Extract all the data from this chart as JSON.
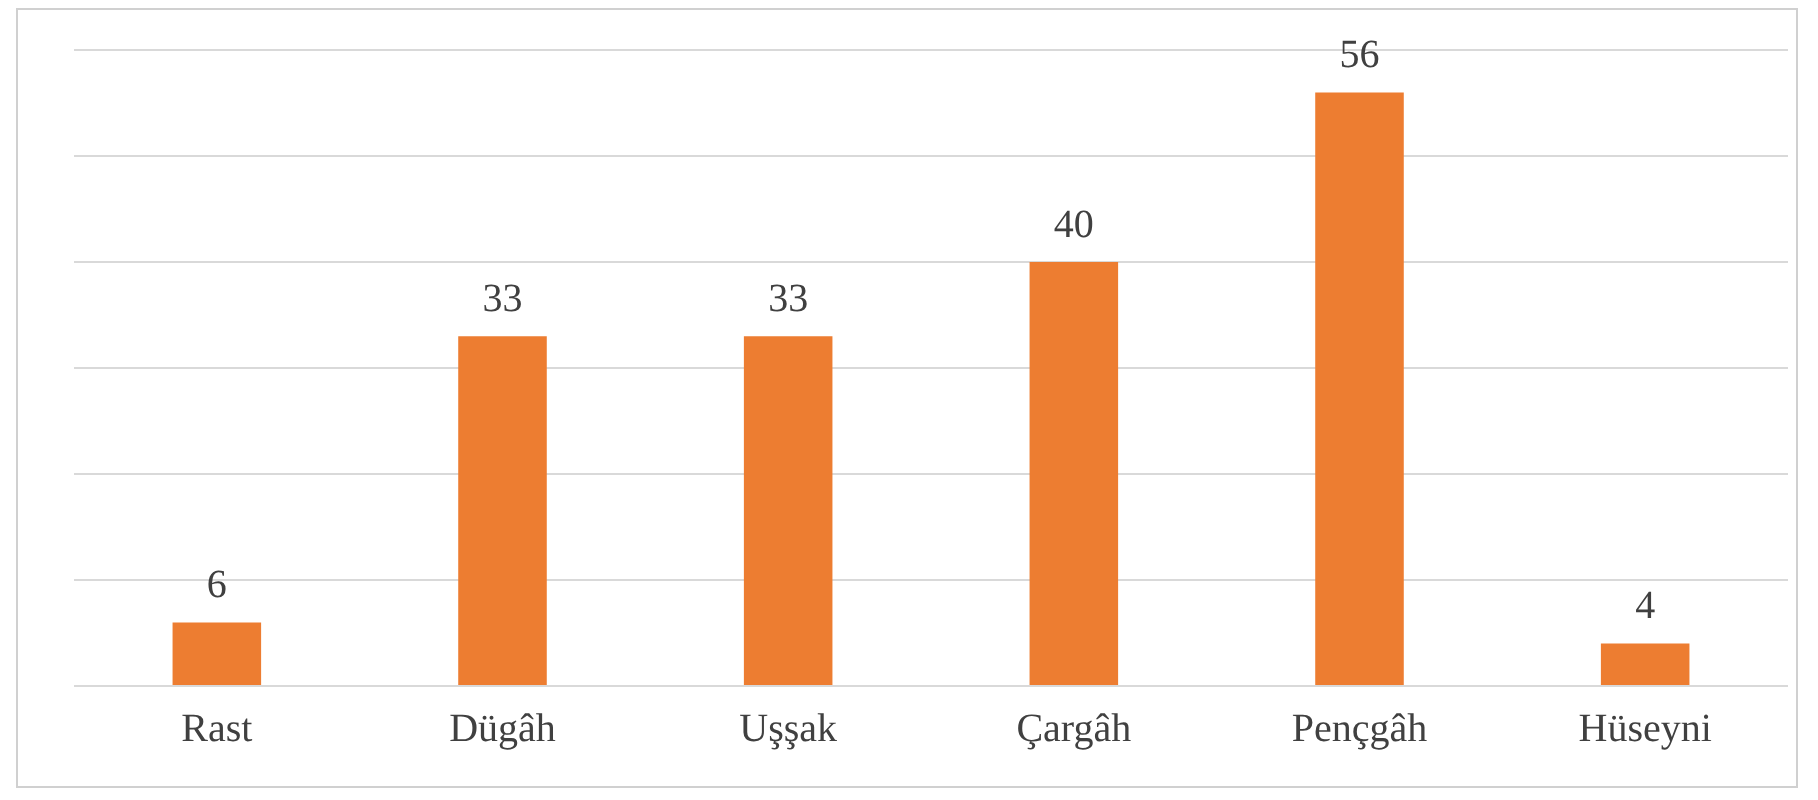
{
  "chart_data": {
    "type": "bar",
    "categories": [
      "Rast",
      "Dügâh",
      "Uşşak",
      "Çargâh",
      "Pençgâh",
      "Hüseyni"
    ],
    "values": [
      6,
      33,
      33,
      40,
      56,
      4
    ],
    "color": "#ed7d31",
    "ylim": [
      0,
      60
    ],
    "yticks": [
      {
        "value": 0,
        "label": null
      },
      {
        "value": 10,
        "label": null
      },
      {
        "value": 20,
        "label": null
      },
      {
        "value": 30,
        "label": null
      },
      {
        "value": 40,
        "label": null
      },
      {
        "value": 50,
        "label": null
      },
      {
        "value": 60,
        "label": null
      }
    ],
    "grid": "y",
    "tick_labels": "x",
    "data_labels": true,
    "legend": false
  }
}
